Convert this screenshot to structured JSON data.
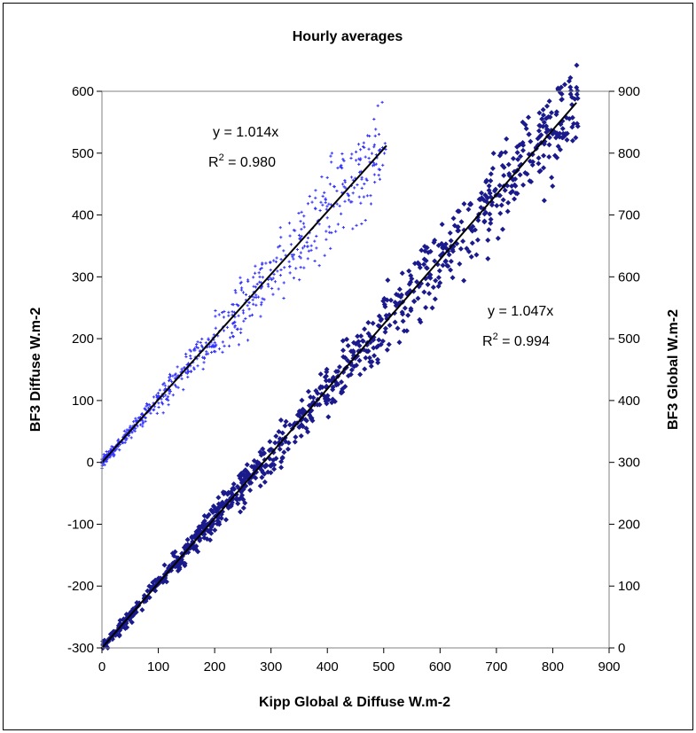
{
  "chart_data": {
    "type": "scatter",
    "title": "Hourly averages",
    "xlabel": "Kipp Global & Diffuse W.m-2",
    "ylabel_left": "BF3 Diffuse W.m-2",
    "ylabel_right": "BF3 Global W.m-2",
    "xlim": [
      0,
      900
    ],
    "ylim_left": [
      -300,
      600
    ],
    "ylim_right": [
      0,
      900
    ],
    "x_ticks": [
      "0",
      "100",
      "200",
      "300",
      "400",
      "500",
      "600",
      "700",
      "800",
      "900"
    ],
    "y_ticks_left": [
      "600",
      "500",
      "400",
      "300",
      "200",
      "100",
      "0",
      "-100",
      "-200",
      "-300"
    ],
    "y_ticks_right": [
      "900",
      "800",
      "700",
      "600",
      "500",
      "400",
      "300",
      "200",
      "100",
      "0"
    ],
    "grid": false,
    "legend": "none",
    "series": [
      {
        "axis": "left",
        "marker": "small-plus",
        "color": "#3333ff",
        "trendline": {
          "slope": 1.014,
          "x_range": [
            0,
            505
          ]
        },
        "x_range": [
          0,
          505
        ],
        "scatter_spread": 0.08
      },
      {
        "axis": "right",
        "marker": "diamond",
        "color": "#1a1a8c",
        "trendline": {
          "slope": 1.047,
          "x_range": [
            0,
            842
          ]
        },
        "x_range": [
          0,
          845
        ],
        "scatter_spread": 0.045
      }
    ],
    "annotations": [
      {
        "eq": "y = 1.014x",
        "r2_prefix": "R",
        "r2_sup": "2",
        "r2_value": " = 0.980"
      },
      {
        "eq": "y = 1.047x",
        "r2_prefix": "R",
        "r2_sup": "2",
        "r2_value": " = 0.994"
      }
    ]
  }
}
